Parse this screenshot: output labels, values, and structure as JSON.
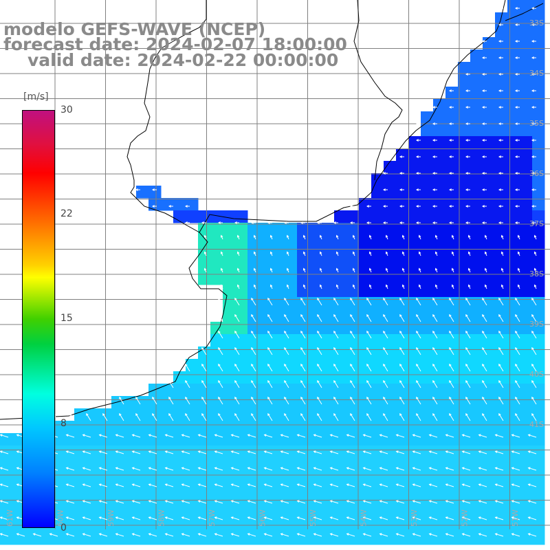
{
  "title": {
    "line1": "modelo GEFS-WAVE (NCEP)",
    "line2": "forecast date: 2024-02-07 18:00:00",
    "line3": "valid date: 2024-02-22 00:00:00"
  },
  "colorbar": {
    "unit": "[m/s]",
    "ticks": [
      "30",
      "22",
      "15",
      "8",
      "0"
    ],
    "colors": [
      "#c01080",
      "#ff0000",
      "#ff7000",
      "#ffff00",
      "#00d040",
      "#00ffe0",
      "#00c8ff",
      "#0080ff",
      "#0000ff"
    ]
  },
  "map": {
    "field": "wind speed with direction arrows",
    "land_color": "#ffffff",
    "coastline_color": "#000000",
    "grid_color": "#7f7f7f",
    "lat_labels": [
      "33S",
      "34S",
      "35S",
      "36S",
      "37S",
      "38S",
      "39S",
      "40S",
      "41S"
    ],
    "lon_labels": [
      "61W",
      "60W",
      "59W",
      "58W",
      "57W",
      "56W",
      "55W",
      "54W",
      "53W",
      "52W",
      "51W"
    ]
  }
}
